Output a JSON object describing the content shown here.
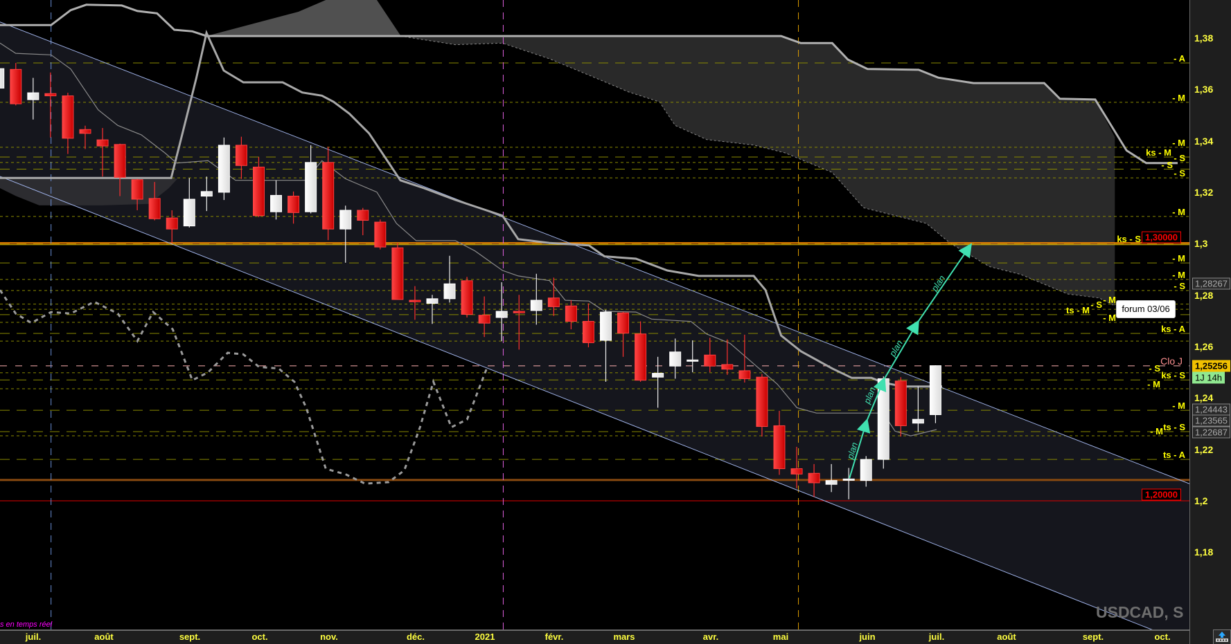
{
  "symbol": "USDCAD, S",
  "realtime_note": "s en temps réel",
  "annotation_label": "forum 03/06",
  "plan_label": "plan",
  "colors": {
    "bull": "#f2f2f2",
    "bear": "#e82020",
    "level": "#a0a000",
    "channel": "#9fb2e8",
    "plan_arrow": "#40e0b0",
    "support": "#8a4a10",
    "resistance": "#ff8c00"
  },
  "price_axis": {
    "ticks": [
      {
        "p": 1.38,
        "label": "1,38"
      },
      {
        "p": 1.36,
        "label": "1,36"
      },
      {
        "p": 1.34,
        "label": "1,34"
      },
      {
        "p": 1.32,
        "label": "1,32"
      },
      {
        "p": 1.3,
        "label": "1,3"
      },
      {
        "p": 1.28,
        "label": "1,28"
      },
      {
        "p": 1.26,
        "label": "1,26"
      },
      {
        "p": 1.24,
        "label": "1,24"
      },
      {
        "p": 1.22,
        "label": "1,22"
      },
      {
        "p": 1.2,
        "label": "1,2"
      },
      {
        "p": 1.18,
        "label": "1,18"
      }
    ]
  },
  "time_axis": {
    "months": [
      "juil.",
      "août",
      "sept.",
      "oct.",
      "nov.",
      "déc.",
      "2021",
      "févr.",
      "mars",
      "avr.",
      "mai",
      "juin",
      "juil.",
      "août",
      "sept.",
      "oct."
    ]
  },
  "price_boxes": [
    {
      "p": 1.28267,
      "label": "1,28267",
      "kind": "gray"
    },
    {
      "p": 1.25256,
      "label": "1,25256",
      "kind": "last"
    },
    {
      "p": 1.248,
      "label": "1J 14h",
      "kind": "timer"
    },
    {
      "p": 1.24443,
      "label": "1,24443",
      "kind": "gray"
    },
    {
      "p": 1.23565,
      "label": "1,23565",
      "kind": "gray"
    },
    {
      "p": 1.22687,
      "label": "1,22687",
      "kind": "gray"
    }
  ],
  "key_levels": [
    {
      "p": 1.3,
      "label": "1,30000",
      "kind": "resistance"
    },
    {
      "p": 1.2081,
      "label": "",
      "kind": "support"
    },
    {
      "p": 1.2,
      "label": "1,20000",
      "kind": "red"
    }
  ],
  "levels": [
    {
      "p": 1.3703,
      "label": "- A",
      "style": "long"
    },
    {
      "p": 1.355,
      "label": "- M",
      "style": "short"
    },
    {
      "p": 1.3375,
      "label": "- M",
      "style": "short"
    },
    {
      "p": 1.3337,
      "label": "ks - M",
      "style": "long"
    },
    {
      "p": 1.3316,
      "label": "- S",
      "style": "short"
    },
    {
      "p": 1.329,
      "label": "- S",
      "style": "long"
    },
    {
      "p": 1.3256,
      "label": "- S",
      "style": "short"
    },
    {
      "p": 1.3106,
      "label": "- M",
      "style": "short"
    },
    {
      "p": 1.3,
      "label": "ks - S",
      "style": "long"
    },
    {
      "p": 1.2925,
      "label": "- M",
      "style": "long"
    },
    {
      "p": 1.2861,
      "label": "- M",
      "style": "short"
    },
    {
      "p": 1.2818,
      "label": "- S",
      "style": "short"
    },
    {
      "p": 1.2765,
      "label": "- M",
      "style": "short"
    },
    {
      "p": 1.2745,
      "label": "- S",
      "style": "short"
    },
    {
      "p": 1.2724,
      "label": "ts - M",
      "style": "long"
    },
    {
      "p": 1.2694,
      "label": "- M",
      "style": "short"
    },
    {
      "p": 1.2651,
      "label": "ks - A",
      "style": "long"
    },
    {
      "p": 1.2621,
      "label": "",
      "style": "short"
    },
    {
      "p": 1.2525,
      "label": "Clo J",
      "style": "clo"
    },
    {
      "p": 1.2498,
      "label": "- S",
      "style": "short"
    },
    {
      "p": 1.247,
      "label": "ks - S",
      "style": "long"
    },
    {
      "p": 1.2436,
      "label": "- M",
      "style": "short"
    },
    {
      "p": 1.2352,
      "label": "- M",
      "style": "long"
    },
    {
      "p": 1.2269,
      "label": "ts - S",
      "style": "long"
    },
    {
      "p": 1.2253,
      "label": "- M",
      "style": "short"
    },
    {
      "p": 1.2161,
      "label": "ts - A",
      "style": "long"
    }
  ],
  "chart_data": {
    "type": "candlestick",
    "timeframe": "S",
    "ylim": [
      1.165,
      1.3946
    ],
    "candles_ohlc": [
      [
        1.3605,
        1.3703,
        1.3596,
        1.3681
      ],
      [
        1.3678,
        1.3703,
        1.3538,
        1.3544
      ],
      [
        1.356,
        1.3645,
        1.3483,
        1.3587
      ],
      [
        1.3584,
        1.3666,
        1.3413,
        1.3575
      ],
      [
        1.3575,
        1.3587,
        1.3349,
        1.341
      ],
      [
        1.3444,
        1.3459,
        1.3368,
        1.3429
      ],
      [
        1.3404,
        1.345,
        1.3261,
        1.338
      ],
      [
        1.3386,
        1.3389,
        1.3185,
        1.3258
      ],
      [
        1.3249,
        1.3252,
        1.313,
        1.3173
      ],
      [
        1.3176,
        1.324,
        1.3091,
        1.3097
      ],
      [
        1.31,
        1.313,
        1.3002,
        1.3057
      ],
      [
        1.3069,
        1.3255,
        1.3063,
        1.3173
      ],
      [
        1.3185,
        1.3261,
        1.3127,
        1.3203
      ],
      [
        1.32,
        1.3413,
        1.317,
        1.3383
      ],
      [
        1.3383,
        1.3416,
        1.3252,
        1.3304
      ],
      [
        1.3298,
        1.3337,
        1.3103,
        1.3109
      ],
      [
        1.3124,
        1.3246,
        1.3094,
        1.3188
      ],
      [
        1.3185,
        1.3203,
        1.3078,
        1.3121
      ],
      [
        1.3124,
        1.3383,
        1.3118,
        1.3316
      ],
      [
        1.3316,
        1.3377,
        1.3014,
        1.3057
      ],
      [
        1.3057,
        1.3148,
        1.2926,
        1.313
      ],
      [
        1.313,
        1.3139,
        1.3033,
        1.3091
      ],
      [
        1.3084,
        1.3094,
        1.2978,
        1.2987
      ],
      [
        1.2984,
        1.3002,
        1.2783,
        1.2783
      ],
      [
        1.278,
        1.2835,
        1.2704,
        1.2774
      ],
      [
        1.2768,
        1.2801,
        1.2688,
        1.2786
      ],
      [
        1.2786,
        1.2953,
        1.2771,
        1.2844
      ],
      [
        1.2856,
        1.2871,
        1.2713,
        1.2725
      ],
      [
        1.2722,
        1.2795,
        1.2637,
        1.2691
      ],
      [
        1.2713,
        1.285,
        1.2621,
        1.2737
      ],
      [
        1.2737,
        1.2801,
        1.2588,
        1.2731
      ],
      [
        1.274,
        1.2883,
        1.2685,
        1.278
      ],
      [
        1.2789,
        1.2868,
        1.2719,
        1.2755
      ],
      [
        1.2758,
        1.278,
        1.2667,
        1.2698
      ],
      [
        1.2698,
        1.2768,
        1.2597,
        1.2615
      ],
      [
        1.2624,
        1.2743,
        1.2463,
        1.2734
      ],
      [
        1.2731,
        1.2735,
        1.256,
        1.2652
      ],
      [
        1.2649,
        1.2698,
        1.2463,
        1.2469
      ],
      [
        1.2481,
        1.256,
        1.2362,
        1.2496
      ],
      [
        1.2524,
        1.2631,
        1.2475,
        1.2579
      ],
      [
        1.2545,
        1.2624,
        1.25,
        1.2548
      ],
      [
        1.2567,
        1.2634,
        1.25,
        1.2524
      ],
      [
        1.253,
        1.2628,
        1.249,
        1.2512
      ],
      [
        1.2506,
        1.2646,
        1.246,
        1.2475
      ],
      [
        1.2481,
        1.2493,
        1.225,
        1.2289
      ],
      [
        1.2292,
        1.235,
        1.2101,
        1.2125
      ],
      [
        1.2125,
        1.221,
        1.2049,
        1.2104
      ],
      [
        1.2107,
        1.2143,
        1.2015,
        1.207
      ],
      [
        1.2064,
        1.2143,
        1.2034,
        1.2079
      ],
      [
        1.2082,
        1.2128,
        1.2006,
        1.2085
      ],
      [
        1.2079,
        1.2174,
        1.2055,
        1.2161
      ],
      [
        1.2161,
        1.2484,
        1.2125,
        1.2475
      ],
      [
        1.2466,
        1.2481,
        1.225,
        1.2292
      ],
      [
        1.2302,
        1.2445,
        1.2268,
        1.2317
      ],
      [
        1.2335,
        1.2527,
        1.2302,
        1.25256
      ]
    ]
  }
}
